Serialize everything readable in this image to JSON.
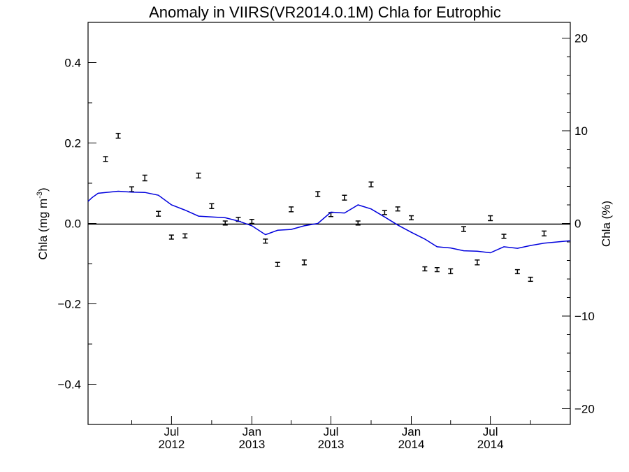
{
  "chart_data": {
    "type": "scatter",
    "title": "Anomaly in VIIRS(VR2014.0.1M) Chla for Eutrophic",
    "ylabel_left": {
      "main": "Chla (mg m",
      "sup": "-3",
      "close": ")"
    },
    "ylabel_right": "Chla (%)",
    "xlim": [
      "2011-12-23",
      "2014-12-31"
    ],
    "ylim_left": [
      -0.5,
      0.5
    ],
    "ylim_right": [
      -21.7,
      21.7
    ],
    "grid": false,
    "zero_line": true,
    "left_ticks": [
      {
        "value": 0.4,
        "label": "0.4"
      },
      {
        "value": 0.2,
        "label": "0.2"
      },
      {
        "value": 0.0,
        "label": "0.0"
      },
      {
        "value": -0.2,
        "label": "−0.2"
      },
      {
        "value": -0.4,
        "label": "−0.4"
      }
    ],
    "left_minor_ticks": [
      0.5,
      0.3,
      0.1,
      -0.1,
      -0.3,
      -0.5
    ],
    "right_ticks": [
      {
        "value": 20,
        "label": "20"
      },
      {
        "value": 10,
        "label": "10"
      },
      {
        "value": 0,
        "label": "0"
      },
      {
        "value": -10,
        "label": "−10"
      },
      {
        "value": -20,
        "label": "−20"
      }
    ],
    "x_major_ticks": [
      {
        "date": "2012-07-01",
        "label1": "Jul",
        "label2": "2012"
      },
      {
        "date": "2013-01-01",
        "label1": "Jan",
        "label2": "2013"
      },
      {
        "date": "2013-07-01",
        "label1": "Jul",
        "label2": "2013"
      },
      {
        "date": "2014-01-01",
        "label1": "Jan",
        "label2": "2014"
      },
      {
        "date": "2014-07-01",
        "label1": "Jul",
        "label2": "2014"
      }
    ],
    "x_minor_ticks": [
      "2012-04-01",
      "2012-10-01",
      "2013-04-01",
      "2013-10-01",
      "2014-04-01",
      "2014-10-01"
    ],
    "series": [
      {
        "type": "errorbar",
        "color": "#000000",
        "points": [
          {
            "x": "2012-02-01",
            "y": 0.16,
            "err": 0.006
          },
          {
            "x": "2012-03-01",
            "y": 0.218,
            "err": 0.006
          },
          {
            "x": "2012-04-01",
            "y": 0.085,
            "err": 0.006
          },
          {
            "x": "2012-05-01",
            "y": 0.113,
            "err": 0.007
          },
          {
            "x": "2012-06-01",
            "y": 0.024,
            "err": 0.006
          },
          {
            "x": "2012-07-01",
            "y": -0.034,
            "err": 0.005
          },
          {
            "x": "2012-08-01",
            "y": -0.031,
            "err": 0.005
          },
          {
            "x": "2012-09-01",
            "y": 0.119,
            "err": 0.006
          },
          {
            "x": "2012-10-01",
            "y": 0.043,
            "err": 0.006
          },
          {
            "x": "2012-11-01",
            "y": 0.001,
            "err": 0.005
          },
          {
            "x": "2012-12-01",
            "y": 0.01,
            "err": 0.005
          },
          {
            "x": "2013-01-01",
            "y": 0.005,
            "err": 0.005
          },
          {
            "x": "2013-02-01",
            "y": -0.044,
            "err": 0.005
          },
          {
            "x": "2013-03-01",
            "y": -0.102,
            "err": 0.005
          },
          {
            "x": "2013-04-01",
            "y": 0.035,
            "err": 0.006
          },
          {
            "x": "2013-05-01",
            "y": -0.097,
            "err": 0.006
          },
          {
            "x": "2013-06-01",
            "y": 0.073,
            "err": 0.006
          },
          {
            "x": "2013-07-01",
            "y": 0.022,
            "err": 0.005
          },
          {
            "x": "2013-08-01",
            "y": 0.064,
            "err": 0.006
          },
          {
            "x": "2013-09-01",
            "y": 0.001,
            "err": 0.005
          },
          {
            "x": "2013-10-01",
            "y": 0.097,
            "err": 0.006
          },
          {
            "x": "2013-11-01",
            "y": 0.027,
            "err": 0.005
          },
          {
            "x": "2013-12-01",
            "y": 0.036,
            "err": 0.005
          },
          {
            "x": "2014-01-01",
            "y": 0.014,
            "err": 0.005
          },
          {
            "x": "2014-02-01",
            "y": -0.113,
            "err": 0.005
          },
          {
            "x": "2014-03-01",
            "y": -0.115,
            "err": 0.005
          },
          {
            "x": "2014-04-01",
            "y": -0.119,
            "err": 0.006
          },
          {
            "x": "2014-05-01",
            "y": -0.014,
            "err": 0.006
          },
          {
            "x": "2014-06-01",
            "y": -0.097,
            "err": 0.006
          },
          {
            "x": "2014-07-01",
            "y": 0.013,
            "err": 0.006
          },
          {
            "x": "2014-08-01",
            "y": -0.032,
            "err": 0.005
          },
          {
            "x": "2014-09-01",
            "y": -0.12,
            "err": 0.005
          },
          {
            "x": "2014-10-01",
            "y": -0.139,
            "err": 0.005
          },
          {
            "x": "2014-11-01",
            "y": -0.025,
            "err": 0.006
          }
        ]
      },
      {
        "type": "line",
        "color": "#0000dd",
        "points": [
          {
            "x": "2011-12-23",
            "y": 0.055
          },
          {
            "x": "2012-01-01",
            "y": 0.064
          },
          {
            "x": "2012-01-15",
            "y": 0.075
          },
          {
            "x": "2012-03-01",
            "y": 0.08
          },
          {
            "x": "2012-04-01",
            "y": 0.078
          },
          {
            "x": "2012-05-01",
            "y": 0.077
          },
          {
            "x": "2012-06-01",
            "y": 0.07
          },
          {
            "x": "2012-07-01",
            "y": 0.046
          },
          {
            "x": "2012-08-01",
            "y": 0.033
          },
          {
            "x": "2012-09-01",
            "y": 0.018
          },
          {
            "x": "2012-10-01",
            "y": 0.016
          },
          {
            "x": "2012-11-01",
            "y": 0.014
          },
          {
            "x": "2012-12-01",
            "y": 0.006
          },
          {
            "x": "2013-01-01",
            "y": -0.006
          },
          {
            "x": "2013-02-01",
            "y": -0.028
          },
          {
            "x": "2013-03-01",
            "y": -0.017
          },
          {
            "x": "2013-04-01",
            "y": -0.015
          },
          {
            "x": "2013-05-01",
            "y": -0.006
          },
          {
            "x": "2013-06-01",
            "y": 0.0
          },
          {
            "x": "2013-07-01",
            "y": 0.028
          },
          {
            "x": "2013-08-01",
            "y": 0.026
          },
          {
            "x": "2013-09-01",
            "y": 0.046
          },
          {
            "x": "2013-10-01",
            "y": 0.036
          },
          {
            "x": "2013-11-01",
            "y": 0.016
          },
          {
            "x": "2013-12-01",
            "y": -0.004
          },
          {
            "x": "2014-01-01",
            "y": -0.022
          },
          {
            "x": "2014-02-01",
            "y": -0.039
          },
          {
            "x": "2014-03-01",
            "y": -0.058
          },
          {
            "x": "2014-04-01",
            "y": -0.061
          },
          {
            "x": "2014-05-01",
            "y": -0.068
          },
          {
            "x": "2014-06-01",
            "y": -0.069
          },
          {
            "x": "2014-07-01",
            "y": -0.073
          },
          {
            "x": "2014-08-01",
            "y": -0.058
          },
          {
            "x": "2014-09-01",
            "y": -0.062
          },
          {
            "x": "2014-10-01",
            "y": -0.055
          },
          {
            "x": "2014-11-01",
            "y": -0.049
          },
          {
            "x": "2014-12-31",
            "y": -0.043
          }
        ]
      }
    ]
  }
}
